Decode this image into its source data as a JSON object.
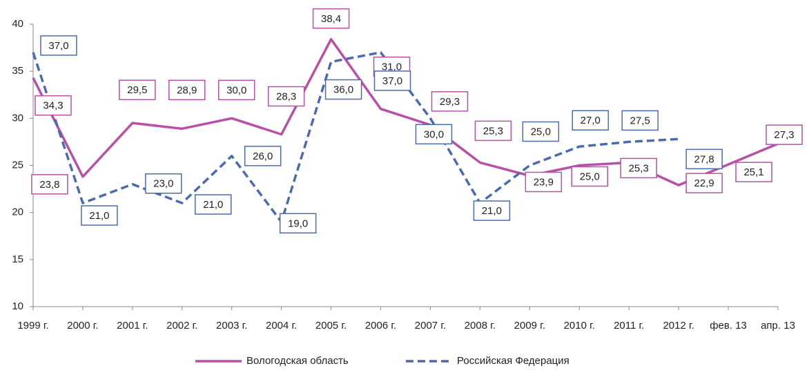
{
  "chart_data": {
    "type": "line",
    "categories": [
      "1999 г.",
      "2000 г.",
      "2001 г.",
      "2002 г.",
      "2003 г.",
      "2004 г.",
      "2005 г.",
      "2006 г.",
      "2007 г.",
      "2008 г.",
      "2009 г.",
      "2010 г.",
      "2011 г.",
      "2012 г.",
      "фев. 13",
      "апр. 13"
    ],
    "series": [
      {
        "name": "Вологодская область",
        "color": "#b94fa7",
        "dash": false,
        "values": [
          34.3,
          23.8,
          29.5,
          28.9,
          30.0,
          28.3,
          38.4,
          31.0,
          29.3,
          25.3,
          23.9,
          25.0,
          25.3,
          22.9,
          25.1,
          27.3
        ],
        "value_labels": [
          "34,3",
          "23,8",
          "29,5",
          "28,9",
          "30,0",
          "28,3",
          "38,4",
          "31,0",
          "29,3",
          "25,3",
          "23,9",
          "25,0",
          "25,3",
          "22,9",
          "25,1",
          "27,3"
        ]
      },
      {
        "name": "Российская Федерация",
        "color": "#4a6ab4",
        "dash": true,
        "values": [
          37.0,
          21.0,
          23.0,
          21.0,
          26.0,
          19.0,
          36.0,
          37.0,
          30.0,
          21.0,
          25.0,
          27.0,
          27.5,
          27.8,
          null,
          null
        ],
        "value_labels": [
          "37,0",
          "21,0",
          "23,0",
          "21,0",
          "26,0",
          "19,0",
          "36,0",
          "37,0",
          "30,0",
          "21,0",
          "25,0",
          "27,0",
          "27,5",
          "27,8",
          null,
          null
        ]
      }
    ],
    "ylim": [
      10,
      40
    ],
    "yticks": [
      10,
      15,
      20,
      25,
      30,
      35,
      40
    ],
    "legend": "bottom"
  }
}
